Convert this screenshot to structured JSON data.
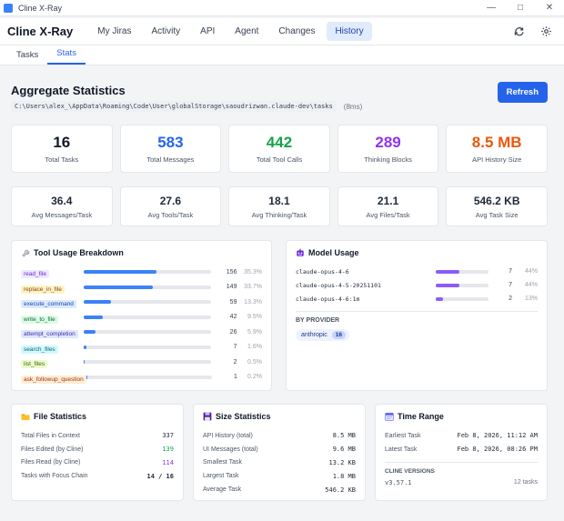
{
  "window": {
    "title": "Cline X-Ray"
  },
  "header": {
    "brand": "Cline X-Ray",
    "nav": [
      "My Jiras",
      "Activity",
      "API",
      "Agent",
      "Changes",
      "History"
    ],
    "active_nav": "History",
    "icons": [
      "refresh-icon",
      "gear-icon"
    ]
  },
  "subtabs": [
    "Tasks",
    "Stats"
  ],
  "active_subtab": "Stats",
  "page": {
    "title": "Aggregate Statistics",
    "path": "C:\\Users\\alex_\\AppData\\Roaming\\Code\\User\\globalStorage\\saoudrizwan.claude-dev\\tasks",
    "timing": "(8ms)",
    "refresh_label": "Refresh"
  },
  "big_stats": [
    {
      "value": "16",
      "label": "Total Tasks",
      "color": "#111827"
    },
    {
      "value": "583",
      "label": "Total Messages",
      "color": "#2563eb"
    },
    {
      "value": "442",
      "label": "Total Tool Calls",
      "color": "#16a34a"
    },
    {
      "value": "289",
      "label": "Thinking Blocks",
      "color": "#9333ea"
    },
    {
      "value": "8.5 MB",
      "label": "API History Size",
      "color": "#ea580c"
    }
  ],
  "small_stats": [
    {
      "value": "36.4",
      "label": "Avg Messages/Task"
    },
    {
      "value": "27.6",
      "label": "Avg Tools/Task"
    },
    {
      "value": "18.1",
      "label": "Avg Thinking/Task"
    },
    {
      "value": "21.1",
      "label": "Avg Files/Task"
    },
    {
      "value": "546.2 KB",
      "label": "Avg Task Size"
    }
  ],
  "tool_usage": {
    "title": "Tool Usage Breakdown",
    "icon": "wrench-icon",
    "tools": [
      {
        "name": "read_file",
        "count": "156",
        "pct": "35.3%",
        "fraction": 0.353,
        "bg": "#ede9fe",
        "fg": "#6d28d9"
      },
      {
        "name": "replace_in_file",
        "count": "149",
        "pct": "33.7%",
        "fraction": 0.337,
        "bg": "#fef3c7",
        "fg": "#92400e"
      },
      {
        "name": "execute_command",
        "count": "59",
        "pct": "13.3%",
        "fraction": 0.133,
        "bg": "#dbeafe",
        "fg": "#1e40af"
      },
      {
        "name": "write_to_file",
        "count": "42",
        "pct": "9.5%",
        "fraction": 0.095,
        "bg": "#dcfce7",
        "fg": "#166534"
      },
      {
        "name": "attempt_completion",
        "count": "26",
        "pct": "5.9%",
        "fraction": 0.059,
        "bg": "#e0e7ff",
        "fg": "#3730a3"
      },
      {
        "name": "search_files",
        "count": "7",
        "pct": "1.6%",
        "fraction": 0.016,
        "bg": "#cffafe",
        "fg": "#155e75"
      },
      {
        "name": "list_files",
        "count": "2",
        "pct": "0.5%",
        "fraction": 0.005,
        "bg": "#ecfccb",
        "fg": "#3f6212"
      },
      {
        "name": "ask_followup_question",
        "count": "1",
        "pct": "0.2%",
        "fraction": 0.002,
        "bg": "#ffedd5",
        "fg": "#9a3412"
      }
    ]
  },
  "model_usage": {
    "title": "Model Usage",
    "icon": "robot-icon",
    "models": [
      {
        "name": "claude-opus-4-6",
        "count": "7",
        "pct": "44%",
        "fraction": 0.44
      },
      {
        "name": "claude-opus-4-5-20251101",
        "count": "7",
        "pct": "44%",
        "fraction": 0.44
      },
      {
        "name": "claude-opus-4-6:1m",
        "count": "2",
        "pct": "13%",
        "fraction": 0.13
      }
    ],
    "provider_label": "BY PROVIDER",
    "providers": [
      {
        "name": "anthropic",
        "count": "16"
      }
    ]
  },
  "file_stats": {
    "title": "File Statistics",
    "icon": "folder-icon",
    "rows": [
      {
        "label": "Total Files in Context",
        "value": "337",
        "style": ""
      },
      {
        "label": "Files Edited (by Cline)",
        "value": "139",
        "style": "green"
      },
      {
        "label": "Files Read (by Cline)",
        "value": "114",
        "style": "purple"
      },
      {
        "label": "Tasks with Focus Chain",
        "value": "14 / 16",
        "style": "bold"
      }
    ]
  },
  "size_stats": {
    "title": "Size Statistics",
    "icon": "floppy-icon",
    "rows": [
      {
        "label": "API History (total)",
        "value": "8.5 MB"
      },
      {
        "label": "UI Messages (total)",
        "value": "9.6 MB"
      },
      {
        "label": "Smallest Task",
        "value": "13.2 KB"
      },
      {
        "label": "Largest Task",
        "value": "1.8 MB"
      },
      {
        "label": "Average Task",
        "value": "546.2 KB"
      }
    ]
  },
  "time_range": {
    "title": "Time Range",
    "icon": "calendar-icon",
    "rows": [
      {
        "label": "Earliest Task",
        "value": "Feb 8, 2026, 11:12 AM"
      },
      {
        "label": "Latest Task",
        "value": "Feb 8, 2026, 08:26 PM"
      }
    ],
    "versions_label": "CLINE VERSIONS",
    "versions": [
      {
        "name": "v3.57.1",
        "count": "12 tasks"
      }
    ]
  }
}
